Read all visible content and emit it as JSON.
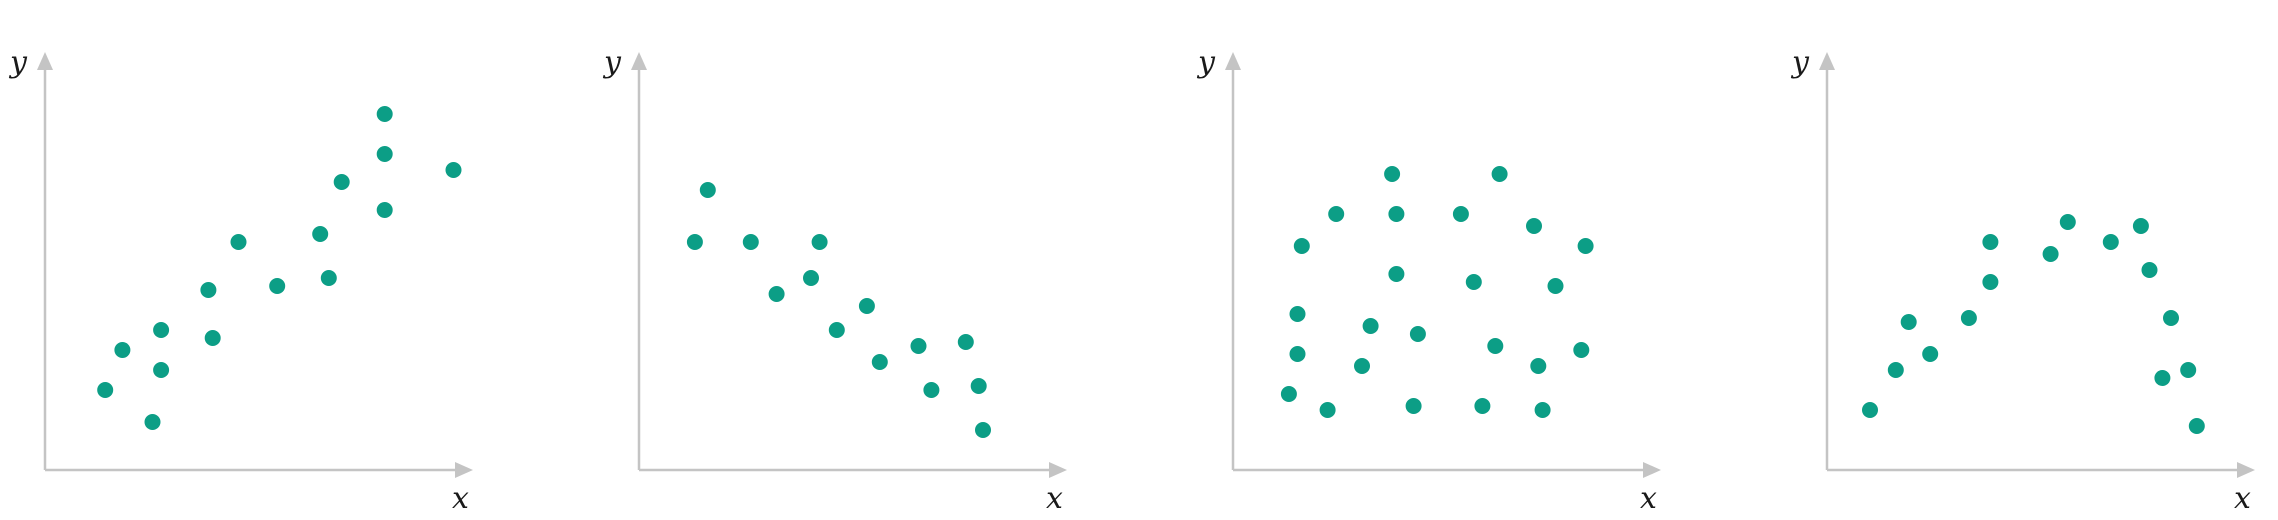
{
  "colors": {
    "point": "#0c9e86",
    "axis": "#c4c4c4",
    "text": "#1a1a1a"
  },
  "chart_data": [
    {
      "type": "scatter",
      "title": "",
      "xlabel": "x",
      "ylabel": "y",
      "xlim": [
        0,
        100
      ],
      "ylim": [
        0,
        100
      ],
      "grid": false,
      "ticks": false,
      "points": [
        {
          "x": 14,
          "y": 20
        },
        {
          "x": 18,
          "y": 30
        },
        {
          "x": 25,
          "y": 12
        },
        {
          "x": 27,
          "y": 25
        },
        {
          "x": 27,
          "y": 35
        },
        {
          "x": 39,
          "y": 33
        },
        {
          "x": 38,
          "y": 45
        },
        {
          "x": 45,
          "y": 57
        },
        {
          "x": 54,
          "y": 46
        },
        {
          "x": 64,
          "y": 59
        },
        {
          "x": 66,
          "y": 48
        },
        {
          "x": 69,
          "y": 72
        },
        {
          "x": 79,
          "y": 65
        },
        {
          "x": 79,
          "y": 79
        },
        {
          "x": 79,
          "y": 89
        },
        {
          "x": 95,
          "y": 75
        }
      ]
    },
    {
      "type": "scatter",
      "title": "",
      "xlabel": "x",
      "ylabel": "y",
      "xlim": [
        0,
        100
      ],
      "ylim": [
        0,
        100
      ],
      "grid": false,
      "ticks": false,
      "points": [
        {
          "x": 13,
          "y": 57
        },
        {
          "x": 16,
          "y": 70
        },
        {
          "x": 26,
          "y": 57
        },
        {
          "x": 32,
          "y": 44
        },
        {
          "x": 40,
          "y": 48
        },
        {
          "x": 42,
          "y": 57
        },
        {
          "x": 46,
          "y": 35
        },
        {
          "x": 53,
          "y": 41
        },
        {
          "x": 56,
          "y": 27
        },
        {
          "x": 65,
          "y": 31
        },
        {
          "x": 68,
          "y": 20
        },
        {
          "x": 76,
          "y": 32
        },
        {
          "x": 79,
          "y": 21
        },
        {
          "x": 80,
          "y": 10
        }
      ]
    },
    {
      "type": "scatter",
      "title": "",
      "xlabel": "x",
      "ylabel": "y",
      "xlim": [
        0,
        100
      ],
      "ylim": [
        0,
        100
      ],
      "grid": false,
      "ticks": false,
      "points": [
        {
          "x": 13,
          "y": 19
        },
        {
          "x": 15,
          "y": 29
        },
        {
          "x": 15,
          "y": 39
        },
        {
          "x": 16,
          "y": 56
        },
        {
          "x": 22,
          "y": 15
        },
        {
          "x": 24,
          "y": 64
        },
        {
          "x": 30,
          "y": 26
        },
        {
          "x": 32,
          "y": 36
        },
        {
          "x": 37,
          "y": 74
        },
        {
          "x": 38,
          "y": 49
        },
        {
          "x": 38,
          "y": 64
        },
        {
          "x": 42,
          "y": 16
        },
        {
          "x": 43,
          "y": 34
        },
        {
          "x": 53,
          "y": 64
        },
        {
          "x": 56,
          "y": 47
        },
        {
          "x": 58,
          "y": 16
        },
        {
          "x": 61,
          "y": 31
        },
        {
          "x": 62,
          "y": 74
        },
        {
          "x": 70,
          "y": 61
        },
        {
          "x": 71,
          "y": 26
        },
        {
          "x": 72,
          "y": 15
        },
        {
          "x": 75,
          "y": 46
        },
        {
          "x": 82,
          "y": 56
        },
        {
          "x": 81,
          "y": 30
        }
      ]
    },
    {
      "type": "scatter",
      "title": "",
      "xlabel": "x",
      "ylabel": "y",
      "xlim": [
        0,
        100
      ],
      "ylim": [
        0,
        100
      ],
      "grid": false,
      "ticks": false,
      "points": [
        {
          "x": 10,
          "y": 15
        },
        {
          "x": 16,
          "y": 25
        },
        {
          "x": 19,
          "y": 37
        },
        {
          "x": 24,
          "y": 29
        },
        {
          "x": 33,
          "y": 38
        },
        {
          "x": 38,
          "y": 47
        },
        {
          "x": 38,
          "y": 57
        },
        {
          "x": 52,
          "y": 54
        },
        {
          "x": 56,
          "y": 62
        },
        {
          "x": 66,
          "y": 57
        },
        {
          "x": 73,
          "y": 61
        },
        {
          "x": 75,
          "y": 50
        },
        {
          "x": 80,
          "y": 38
        },
        {
          "x": 78,
          "y": 23
        },
        {
          "x": 84,
          "y": 25
        },
        {
          "x": 86,
          "y": 11
        }
      ]
    }
  ]
}
